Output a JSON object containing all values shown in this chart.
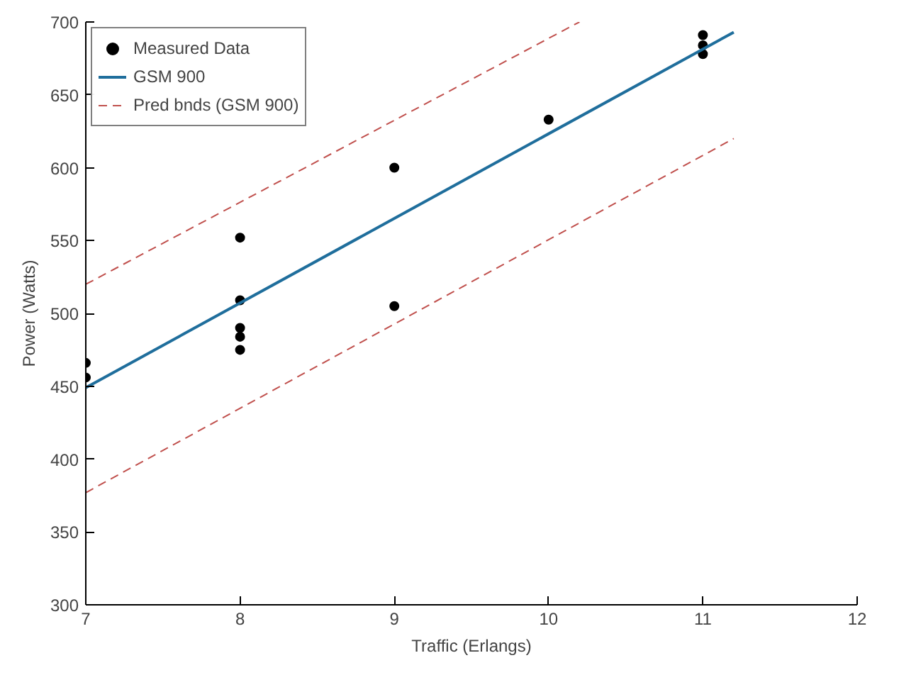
{
  "chart_data": {
    "type": "scatter",
    "xlabel": "Traffic (Erlangs)",
    "ylabel": "Power (Watts)",
    "xlim": [
      7,
      12
    ],
    "ylim": [
      300,
      700
    ],
    "xticks": [
      7,
      8,
      9,
      10,
      11,
      12
    ],
    "yticks": [
      300,
      350,
      400,
      450,
      500,
      550,
      600,
      650,
      700
    ],
    "grid": false,
    "legend": "top left",
    "series": [
      {
        "name": "Measured Data",
        "marker": "circle",
        "color": "#000000",
        "x": [
          7,
          7,
          8,
          8,
          8,
          8,
          8,
          9,
          9,
          10,
          11,
          11,
          11
        ],
        "values": [
          466,
          456,
          552,
          509,
          490,
          484,
          475,
          600,
          505,
          633,
          691,
          684,
          678
        ]
      },
      {
        "name": "GSM 900",
        "type": "line",
        "line_style": "solid",
        "color": "#1f6e9c",
        "x": [
          7,
          11.2
        ],
        "values": [
          449,
          693
        ]
      },
      {
        "name": "Pred bnds (GSM 900)",
        "type": "line",
        "line_style": "dashed",
        "color": "#c0504d",
        "x": [
          7,
          10.2
        ],
        "values": [
          520,
          700
        ]
      },
      {
        "type": "line",
        "line_style": "dashed",
        "color": "#c0504d",
        "x": [
          7,
          11.2
        ],
        "values": [
          377,
          620
        ]
      }
    ]
  }
}
